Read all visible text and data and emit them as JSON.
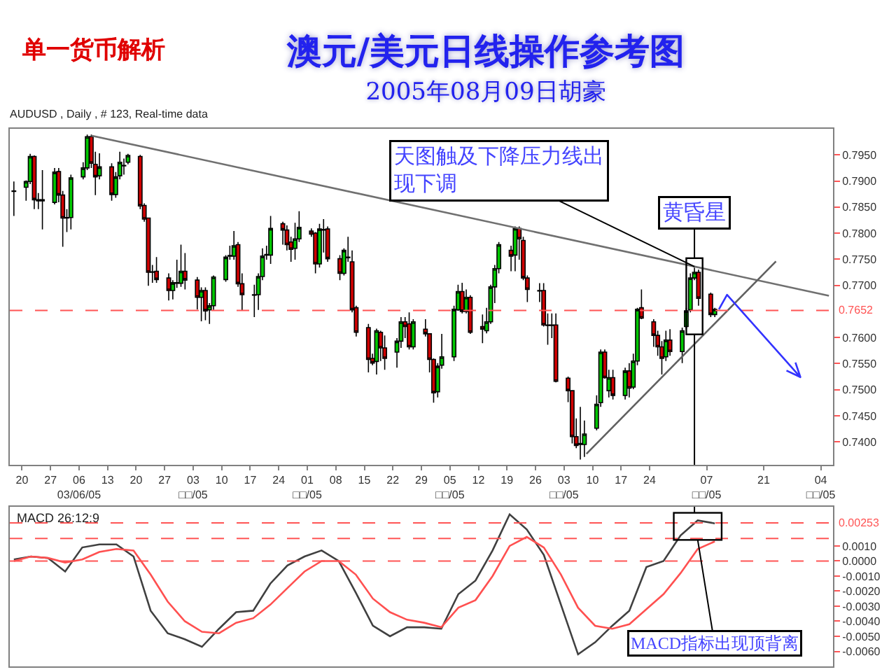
{
  "chart_data": [
    {
      "type": "candlestick",
      "title": "澳元/美元日线操作参考图",
      "subtitle": "2005年08月09日胡豪",
      "annotations": [
        "单一货币解析",
        "AUDUSD , Daily , # 123, Real-time data",
        {
          "text": "天图触及下降压力线出现下调",
          "x": "2005-08-04",
          "y": 0.7736
        },
        "黄昏星"
      ],
      "x": [
        "2005-02-18",
        "2005-02-21",
        "2005-02-22",
        "2005-02-23",
        "2005-02-24",
        "2005-02-25",
        "2005-02-28",
        "2005-03-01",
        "2005-03-02",
        "2005-03-03",
        "2005-03-04",
        "2005-03-07",
        "2005-03-08",
        "2005-03-09",
        "2005-03-10",
        "2005-03-11",
        "2005-03-14",
        "2005-03-15",
        "2005-03-16",
        "2005-03-17",
        "2005-03-18",
        "2005-03-21",
        "2005-03-22",
        "2005-03-23",
        "2005-03-24",
        "2005-03-25",
        "2005-03-28",
        "2005-03-29",
        "2005-03-30",
        "2005-03-31",
        "2005-04-01",
        "2005-04-04",
        "2005-04-05",
        "2005-04-06",
        "2005-04-07",
        "2005-04-08",
        "2005-04-11",
        "2005-04-12",
        "2005-04-13",
        "2005-04-14",
        "2005-04-15",
        "2005-04-18",
        "2005-04-19",
        "2005-04-20",
        "2005-04-21",
        "2005-04-22",
        "2005-04-25",
        "2005-04-26",
        "2005-04-27",
        "2005-04-28",
        "2005-04-29",
        "2005-05-02",
        "2005-05-03",
        "2005-05-04",
        "2005-05-05",
        "2005-05-06",
        "2005-05-09",
        "2005-05-10",
        "2005-05-11",
        "2005-05-12",
        "2005-05-13",
        "2005-05-16",
        "2005-05-17",
        "2005-05-18",
        "2005-05-19",
        "2005-05-20",
        "2005-05-23",
        "2005-05-24",
        "2005-05-25",
        "2005-05-26",
        "2005-05-27",
        "2005-05-30",
        "2005-05-31",
        "2005-06-01",
        "2005-06-02",
        "2005-06-03",
        "2005-06-06",
        "2005-06-07",
        "2005-06-08",
        "2005-06-09",
        "2005-06-10",
        "2005-06-13",
        "2005-06-14",
        "2005-06-15",
        "2005-06-16",
        "2005-06-17",
        "2005-06-20",
        "2005-06-21",
        "2005-06-22",
        "2005-06-23",
        "2005-06-24",
        "2005-06-27",
        "2005-06-28",
        "2005-06-29",
        "2005-06-30",
        "2005-07-01",
        "2005-07-04",
        "2005-07-05",
        "2005-07-06",
        "2005-07-07",
        "2005-07-08",
        "2005-07-11",
        "2005-07-12",
        "2005-07-13",
        "2005-07-14",
        "2005-07-15",
        "2005-07-18",
        "2005-07-19",
        "2005-07-20",
        "2005-07-21",
        "2005-07-22",
        "2005-07-25",
        "2005-07-26",
        "2005-07-27",
        "2005-07-28",
        "2005-07-29",
        "2005-08-01",
        "2005-08-02",
        "2005-08-03",
        "2005-08-04",
        "2005-08-05",
        "2005-08-08",
        "2005-08-09"
      ],
      "ohlc": [
        [
          0.7881,
          0.7899,
          0.7833,
          0.788
        ],
        [
          0.7888,
          0.7901,
          0.7862,
          0.7899
        ],
        [
          0.7899,
          0.7952,
          0.7894,
          0.7947
        ],
        [
          0.7947,
          0.7949,
          0.7846,
          0.7864
        ],
        [
          0.7864,
          0.7877,
          0.7846,
          0.7862
        ],
        [
          0.7862,
          0.7921,
          0.7807,
          0.7864
        ],
        [
          0.7859,
          0.7925,
          0.7855,
          0.7917
        ],
        [
          0.7918,
          0.7925,
          0.7859,
          0.7873
        ],
        [
          0.7873,
          0.7881,
          0.7774,
          0.7829
        ],
        [
          0.7829,
          0.7846,
          0.7802,
          0.783
        ],
        [
          0.783,
          0.7912,
          0.7807,
          0.7906
        ],
        [
          0.7908,
          0.7936,
          0.7903,
          0.7925
        ],
        [
          0.7925,
          0.7989,
          0.7921,
          0.7985
        ],
        [
          0.7985,
          0.7989,
          0.7925,
          0.7934
        ],
        [
          0.7932,
          0.7956,
          0.7873,
          0.7908
        ],
        [
          0.791,
          0.7953,
          0.7903,
          0.7927
        ],
        [
          0.7927,
          0.7934,
          0.7862,
          0.7874
        ],
        [
          0.7874,
          0.7917,
          0.7868,
          0.7908
        ],
        [
          0.791,
          0.7956,
          0.7903,
          0.7936
        ],
        [
          0.793,
          0.7943,
          0.7912,
          0.7929
        ],
        [
          0.7936,
          0.7952,
          0.7932,
          0.7949
        ],
        [
          0.7947,
          0.795,
          0.7846,
          0.7852
        ],
        [
          0.7853,
          0.7857,
          0.7822,
          0.7827
        ],
        [
          0.7829,
          0.783,
          0.7699,
          0.7725
        ],
        [
          0.7725,
          0.7739,
          0.7705,
          0.7726
        ],
        [
          0.7727,
          0.7754,
          0.7705,
          0.7711
        ],
        [
          0.7714,
          0.7723,
          0.7671,
          0.769
        ],
        [
          0.769,
          0.771,
          0.7673,
          0.7705
        ],
        [
          0.7705,
          0.7749,
          0.7695,
          0.7704
        ],
        [
          0.7704,
          0.7778,
          0.7697,
          0.7727
        ],
        [
          0.7727,
          0.7762,
          0.7692,
          0.771
        ],
        [
          0.771,
          0.7716,
          0.7654,
          0.7677
        ],
        [
          0.7677,
          0.7696,
          0.7631,
          0.769
        ],
        [
          0.769,
          0.7696,
          0.7633,
          0.7651
        ],
        [
          0.7653,
          0.7666,
          0.7626,
          0.7661
        ],
        [
          0.7661,
          0.7719,
          0.7653,
          0.7716
        ],
        [
          0.7711,
          0.7758,
          0.7707,
          0.7754
        ],
        [
          0.7756,
          0.7776,
          0.7749,
          0.7757
        ],
        [
          0.7756,
          0.7804,
          0.7749,
          0.7776
        ],
        [
          0.7778,
          0.7783,
          0.7697,
          0.7703
        ],
        [
          0.7703,
          0.7723,
          0.7651,
          0.7682
        ],
        [
          0.7682,
          0.7701,
          0.7639,
          0.7681
        ],
        [
          0.7682,
          0.7723,
          0.7653,
          0.7717
        ],
        [
          0.7717,
          0.7771,
          0.771,
          0.7756
        ],
        [
          0.7758,
          0.7776,
          0.7749,
          0.7759
        ],
        [
          0.7758,
          0.7833,
          0.7741,
          0.7809
        ],
        [
          0.7818,
          0.7822,
          0.7778,
          0.7806
        ],
        [
          0.7806,
          0.7815,
          0.7767,
          0.7778
        ],
        [
          0.7783,
          0.7793,
          0.7745,
          0.7769
        ],
        [
          0.7771,
          0.782,
          0.7749,
          0.7789
        ],
        [
          0.7789,
          0.7842,
          0.7783,
          0.7811
        ],
        [
          0.7804,
          0.7809,
          0.7793,
          0.7798
        ],
        [
          0.78,
          0.7802,
          0.7723,
          0.7741
        ],
        [
          0.7741,
          0.7818,
          0.7734,
          0.7808
        ],
        [
          0.7807,
          0.7827,
          0.7763,
          0.7806
        ],
        [
          0.7808,
          0.7813,
          0.7745,
          0.7751
        ],
        [
          0.7751,
          0.7758,
          0.771,
          0.7723
        ],
        [
          0.7723,
          0.7771,
          0.7719,
          0.7767
        ],
        [
          0.7753,
          0.7793,
          0.7745,
          0.7754
        ],
        [
          0.7745,
          0.7767,
          0.7648,
          0.7653
        ],
        [
          0.7657,
          0.7661,
          0.7602,
          0.761
        ],
        [
          0.7619,
          0.7626,
          0.7533,
          0.7558
        ],
        [
          0.756,
          0.7569,
          0.7547,
          0.7551
        ],
        [
          0.7554,
          0.7617,
          0.7529,
          0.7613
        ],
        [
          0.761,
          0.7613,
          0.7555,
          0.758
        ],
        [
          0.758,
          0.7604,
          0.7538,
          0.756
        ],
        [
          0.7572,
          0.7599,
          0.7542,
          0.7593
        ],
        [
          0.7593,
          0.7639,
          0.758,
          0.763
        ],
        [
          0.763,
          0.7639,
          0.7599,
          0.7621
        ],
        [
          0.7626,
          0.7648,
          0.7577,
          0.7582
        ],
        [
          0.7582,
          0.7635,
          0.7577,
          0.763
        ],
        [
          0.7616,
          0.7635,
          0.7602,
          0.7607
        ],
        [
          0.7607,
          0.7608,
          0.7533,
          0.7558
        ],
        [
          0.7558,
          0.756,
          0.7475,
          0.7494
        ],
        [
          0.7496,
          0.7551,
          0.7485,
          0.7545
        ],
        [
          0.7547,
          0.7607,
          0.754,
          0.7563
        ],
        [
          0.7563,
          0.7661,
          0.7555,
          0.7654
        ],
        [
          0.7653,
          0.7701,
          0.7651,
          0.7688
        ],
        [
          0.7688,
          0.7705,
          0.7646,
          0.765
        ],
        [
          0.765,
          0.7692,
          0.7646,
          0.7677
        ],
        [
          0.7677,
          0.7681,
          0.7607,
          0.761
        ],
        [
          0.7621,
          0.7644,
          0.7589,
          0.7616
        ],
        [
          0.7613,
          0.7657,
          0.7608,
          0.763
        ],
        [
          0.763,
          0.7701,
          0.7626,
          0.7697
        ],
        [
          0.7697,
          0.7739,
          0.7666,
          0.7732
        ],
        [
          0.7732,
          0.7783,
          0.7723,
          0.7778
        ],
        [
          0.7767,
          0.7776,
          0.7727,
          0.7756
        ],
        [
          0.7758,
          0.7813,
          0.7727,
          0.7809
        ],
        [
          0.7809,
          0.7813,
          0.7749,
          0.7789
        ],
        [
          0.7786,
          0.7793,
          0.771,
          0.7714
        ],
        [
          0.7714,
          0.7719,
          0.7668,
          0.7692
        ],
        [
          0.769,
          0.7704,
          0.7668,
          0.7689
        ],
        [
          0.769,
          0.7704,
          0.7621,
          0.7624
        ],
        [
          0.7624,
          0.7646,
          0.7586,
          0.7623
        ],
        [
          0.7623,
          0.7646,
          0.7599,
          0.7624
        ],
        [
          0.7624,
          0.7646,
          0.7514,
          0.7516
        ],
        [
          0.7522,
          0.7525,
          0.7476,
          0.7498
        ],
        [
          0.7498,
          0.7498,
          0.7397,
          0.741
        ],
        [
          0.741,
          0.7445,
          0.7388,
          0.7393
        ],
        [
          0.7397,
          0.7467,
          0.7366,
          0.7395
        ],
        [
          0.7395,
          0.7441,
          0.7371,
          0.7415
        ],
        [
          0.7426,
          0.7489,
          0.7422,
          0.7472
        ],
        [
          0.7475,
          0.7577,
          0.7467,
          0.7572
        ],
        [
          0.7572,
          0.7577,
          0.7521,
          0.7523
        ],
        [
          0.7498,
          0.7538,
          0.7485,
          0.7523
        ],
        [
          0.7523,
          0.7538,
          0.7481,
          0.7489
        ],
        [
          0.7489,
          0.7542,
          0.7481,
          0.7536
        ],
        [
          0.7536,
          0.7551,
          0.7485,
          0.7503
        ],
        [
          0.7505,
          0.7569,
          0.7501,
          0.7555
        ],
        [
          0.7555,
          0.7657,
          0.7547,
          0.7654
        ],
        [
          0.7657,
          0.7692,
          0.7635,
          0.7637
        ],
        [
          0.763,
          0.7635,
          0.7582,
          0.7604
        ],
        [
          0.7604,
          0.7613,
          0.7565,
          0.7582
        ],
        [
          0.7582,
          0.7593,
          0.7529,
          0.756
        ],
        [
          0.7563,
          0.7613,
          0.7555,
          0.7595
        ],
        [
          0.7595,
          0.7616,
          0.7565,
          0.7573
        ],
        [
          0.7573,
          0.7619,
          0.7551,
          0.7613
        ],
        [
          0.7621,
          0.7657,
          0.7617,
          0.7651
        ],
        [
          0.7653,
          0.7723,
          0.7648,
          0.7714
        ],
        [
          0.7714,
          0.7734,
          0.771,
          0.7725
        ],
        [
          0.7725,
          0.773,
          0.7661,
          0.7675
        ],
        [
          0.7683,
          0.7686,
          0.7639,
          0.7644
        ],
        [
          0.7644,
          0.7657,
          0.7639,
          0.7654
        ]
      ],
      "series": [
        {
          "type": "line",
          "color": "#707070",
          "x": [
            "2005-03-09",
            "2005-09-06"
          ],
          "values": [
            0.7987,
            0.768
          ]
        },
        {
          "type": "line",
          "color": "#606060",
          "x": [
            "2005-07-08T12:00",
            "2005-08-24"
          ],
          "values": [
            0.7377,
            0.7746
          ]
        }
      ],
      "xlim": [
        "2005-02-17",
        "2005-09-07"
      ],
      "xticks": [
        {
          "value": "2005-02-20",
          "label": "20"
        },
        {
          "value": "2005-02-27",
          "label": "27"
        },
        {
          "value": "2005-03-06",
          "label": "06\n03/06/05"
        },
        {
          "value": "2005-03-13",
          "label": "13"
        },
        {
          "value": "2005-03-20",
          "label": "20"
        },
        {
          "value": "2005-03-27",
          "label": "27"
        },
        {
          "value": "2005-04-03",
          "label": "03\n□□/05"
        },
        {
          "value": "2005-04-10",
          "label": "10"
        },
        {
          "value": "2005-04-17",
          "label": "17"
        },
        {
          "value": "2005-04-24",
          "label": "24"
        },
        {
          "value": "2005-05-01",
          "label": "01\n□□/05"
        },
        {
          "value": "2005-05-08",
          "label": "08"
        },
        {
          "value": "2005-05-15",
          "label": "15"
        },
        {
          "value": "2005-05-22",
          "label": "22"
        },
        {
          "value": "2005-05-29",
          "label": "29"
        },
        {
          "value": "2005-06-05",
          "label": "05\n□□/05"
        },
        {
          "value": "2005-06-12",
          "label": "12"
        },
        {
          "value": "2005-06-19",
          "label": "19"
        },
        {
          "value": "2005-06-26",
          "label": "26"
        },
        {
          "value": "2005-07-03",
          "label": "03\n□□/05"
        },
        {
          "value": "2005-07-10",
          "label": "10"
        },
        {
          "value": "2005-07-17",
          "label": "17"
        },
        {
          "value": "2005-07-24",
          "label": "24"
        },
        {
          "value": "2005-08-07",
          "label": "07\n□□/05"
        },
        {
          "value": "2005-08-21",
          "label": "21"
        },
        {
          "value": "2005-09-04",
          "label": "04\n□□/05"
        }
      ],
      "ylim": [
        0.7356,
        0.8
      ],
      "yticks": [
        {
          "value": 0.795,
          "label": "0.7950"
        },
        {
          "value": 0.79,
          "label": "0.7900"
        },
        {
          "value": 0.785,
          "label": "0.7850"
        },
        {
          "value": 0.78,
          "label": "0.7800"
        },
        {
          "value": 0.775,
          "label": "0.7750"
        },
        {
          "value": 0.77,
          "label": "0.7700"
        },
        {
          "value": 0.76,
          "label": "0.7600"
        },
        {
          "value": 0.755,
          "label": "0.7550"
        },
        {
          "value": 0.75,
          "label": "0.7500"
        },
        {
          "value": 0.745,
          "label": "0.7450"
        },
        {
          "value": 0.74,
          "label": "0.7400"
        }
      ],
      "ref_lines": [
        {
          "axis": "y",
          "value": 0.7652,
          "label": "0.7652",
          "color": "#ff5555",
          "line_style": "dashed"
        }
      ]
    },
    {
      "type": "line",
      "title": "MACD 26:12:9",
      "annotations": [
        "MACD指标出现顶背离"
      ],
      "categories": [
        null,
        null,
        null,
        null,
        null,
        null,
        null,
        null,
        null,
        null,
        null,
        null,
        null,
        null,
        null,
        null,
        null,
        null,
        null,
        null,
        null,
        null,
        null,
        null,
        null,
        null,
        null,
        null,
        null,
        null,
        null,
        null,
        null,
        null,
        null,
        null,
        null,
        null,
        null,
        null,
        null,
        null
      ],
      "series": [
        {
          "color": "#404040",
          "values": [
            0.0001,
            0.0003,
            0.0002,
            -0.0007,
            0.0009,
            0.0011,
            0.0011,
            0.0003,
            -0.0033,
            -0.0048,
            -0.0052,
            -0.0057,
            -0.0045,
            -0.0034,
            -0.0033,
            -0.0015,
            -0.0003,
            0.0003,
            0.0007,
            0.0,
            -0.0021,
            -0.0043,
            -0.005,
            -0.0044,
            -0.0044,
            -0.0045,
            -0.0022,
            -0.0013,
            0.0007,
            0.0031,
            0.0021,
            0.0004,
            -0.0029,
            -0.0062,
            -0.0054,
            -0.0043,
            -0.0033,
            -0.0004,
            0.0,
            0.0017,
            0.0027,
            0.0025
          ]
        },
        {
          "color": "#ff5050",
          "values": [
            0.0,
            0.0003,
            0.0002,
            -0.0001,
            0.0001,
            0.0006,
            0.0008,
            0.0007,
            -0.0009,
            -0.0027,
            -0.004,
            -0.0047,
            -0.0048,
            -0.0041,
            -0.0038,
            -0.0029,
            -0.0018,
            -0.0007,
            0.0,
            0.0,
            -0.0009,
            -0.0025,
            -0.0034,
            -0.0039,
            -0.0041,
            -0.0044,
            -0.0031,
            -0.0026,
            -0.001,
            0.001,
            0.0016,
            0.0009,
            -0.0009,
            -0.0031,
            -0.0043,
            -0.0045,
            -0.0042,
            -0.0032,
            -0.0022,
            -0.0008,
            0.0008,
            0.0013
          ]
        }
      ],
      "ylim": [
        -0.007,
        0.0036
      ],
      "yticks": [
        {
          "value": 0.001,
          "label": "0.0010"
        },
        {
          "value": 0,
          "label": "0.0000"
        },
        {
          "value": -0.001,
          "label": "-0.0010"
        },
        {
          "value": -0.002,
          "label": "-0.0020"
        },
        {
          "value": -0.003,
          "label": "-0.0030"
        },
        {
          "value": -0.004,
          "label": "-0.0040"
        },
        {
          "value": -0.005,
          "label": "-0.0050"
        },
        {
          "value": -0.006,
          "label": "-0.0060"
        }
      ],
      "ref_lines": [
        {
          "axis": "y",
          "value": 0.00253,
          "label": "0.00253",
          "color": "#ff5555",
          "line_style": "dashed"
        },
        {
          "axis": "y",
          "value": 0.0015,
          "color": "#ff5555",
          "line_style": "dashed"
        },
        {
          "axis": "y",
          "value": 0,
          "color": "#ff5555",
          "line_style": "dashed"
        }
      ],
      "tick_labels": "y"
    }
  ]
}
